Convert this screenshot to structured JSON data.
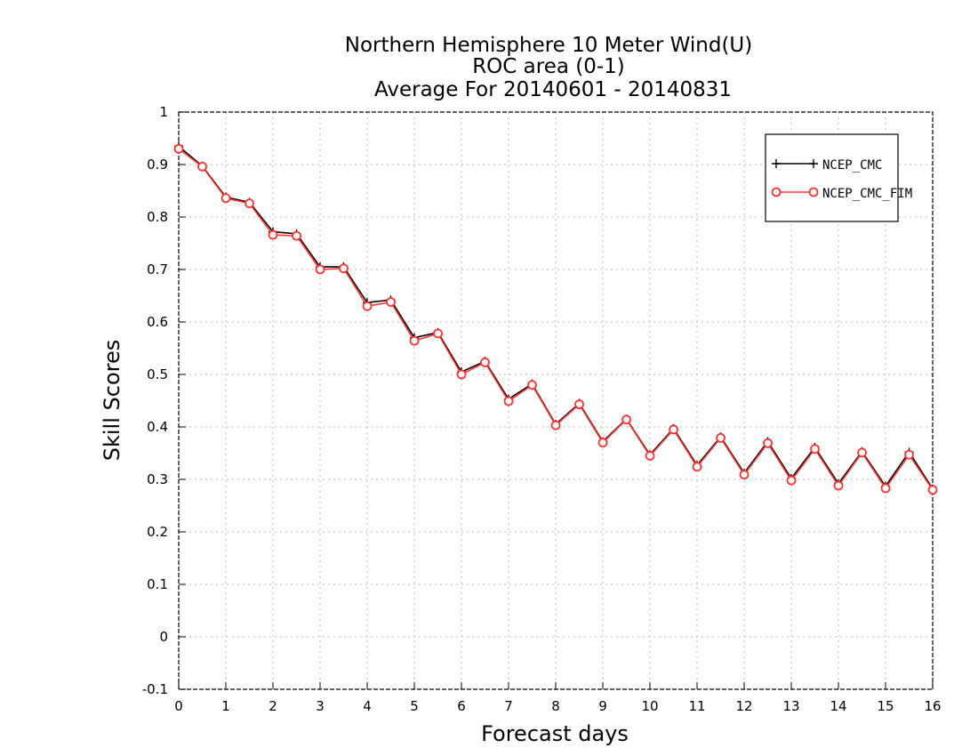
{
  "chart_data": {
    "type": "line",
    "title": [
      "Northern Hemisphere 10 Meter Wind(U)",
      "ROC area (0-1)",
      "Average For 20140601 - 20140831"
    ],
    "xlabel": "Forecast days",
    "ylabel": "Skill Scores",
    "xlim": [
      0,
      16
    ],
    "ylim": [
      -0.1,
      1
    ],
    "xticks": [
      "0",
      "1",
      "2",
      "3",
      "4",
      "5",
      "6",
      "7",
      "8",
      "9",
      "10",
      "11",
      "12",
      "13",
      "14",
      "15",
      "16"
    ],
    "yticks": [
      "-0.1",
      "0",
      "0.1",
      "0.2",
      "0.3",
      "0.4",
      "0.5",
      "0.6",
      "0.7",
      "0.8",
      "0.9",
      "1"
    ],
    "grid": true,
    "legend_position": "top-right",
    "x": [
      0,
      0.5,
      1,
      1.5,
      2,
      2.5,
      3,
      3.5,
      4,
      4.5,
      5,
      5.5,
      6,
      6.5,
      7,
      7.5,
      8,
      8.5,
      9,
      9.5,
      10,
      10.5,
      11,
      11.5,
      12,
      12.5,
      13,
      13.5,
      14,
      14.5,
      15,
      15.5,
      16
    ],
    "series": [
      {
        "name": "NCEP_CMC",
        "color": "#000000",
        "marker": "plus",
        "values": [
          0.935,
          0.897,
          0.838,
          0.828,
          0.772,
          0.768,
          0.705,
          0.705,
          0.637,
          0.642,
          0.57,
          0.58,
          0.505,
          0.525,
          0.453,
          0.482,
          0.405,
          0.445,
          0.372,
          0.415,
          0.347,
          0.397,
          0.327,
          0.381,
          0.312,
          0.372,
          0.302,
          0.361,
          0.292,
          0.353,
          0.287,
          0.352,
          0.282
        ]
      },
      {
        "name": "NCEP_CMC_FIM",
        "color": "#ff3333",
        "marker": "circle",
        "values": [
          0.93,
          0.896,
          0.836,
          0.826,
          0.766,
          0.764,
          0.7,
          0.702,
          0.63,
          0.638,
          0.564,
          0.578,
          0.5,
          0.523,
          0.449,
          0.48,
          0.403,
          0.443,
          0.37,
          0.414,
          0.345,
          0.395,
          0.324,
          0.379,
          0.309,
          0.369,
          0.298,
          0.358,
          0.288,
          0.351,
          0.283,
          0.347,
          0.28
        ]
      }
    ]
  }
}
